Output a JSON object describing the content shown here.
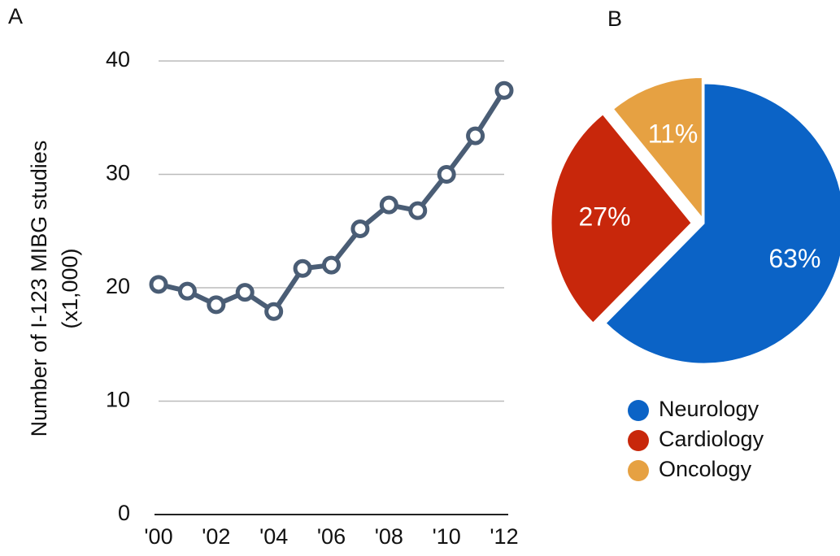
{
  "chart_data": [
    {
      "type": "line",
      "panel_label": "A",
      "ylabel": [
        "Number of I-123 MIBG studies",
        "(x1,000)"
      ],
      "categories": [
        "'00",
        null,
        "'02",
        null,
        "'04",
        null,
        "'06",
        null,
        "'08",
        null,
        "'10",
        null,
        "'12"
      ],
      "series": [
        {
          "name": "I-123 MIBG studies",
          "color": "#4a5d75",
          "values": [
            20.3,
            19.7,
            18.5,
            19.6,
            17.9,
            21.7,
            22.0,
            25.2,
            27.3,
            26.8,
            30.0,
            33.4,
            37.4
          ]
        }
      ],
      "ylim": [
        0,
        40
      ],
      "yticks": [
        0,
        10,
        20,
        30,
        40
      ],
      "grid": true
    },
    {
      "type": "pie",
      "panel_label": "B",
      "categories": [
        "Neurology",
        "Cardiology",
        "Oncology"
      ],
      "values": [
        63,
        27,
        11
      ],
      "value_labels": [
        "63%",
        "27%",
        "11%"
      ],
      "colors": [
        "#0b63c6",
        "#c8270b",
        "#e6a142"
      ],
      "legend": "bottom"
    }
  ]
}
